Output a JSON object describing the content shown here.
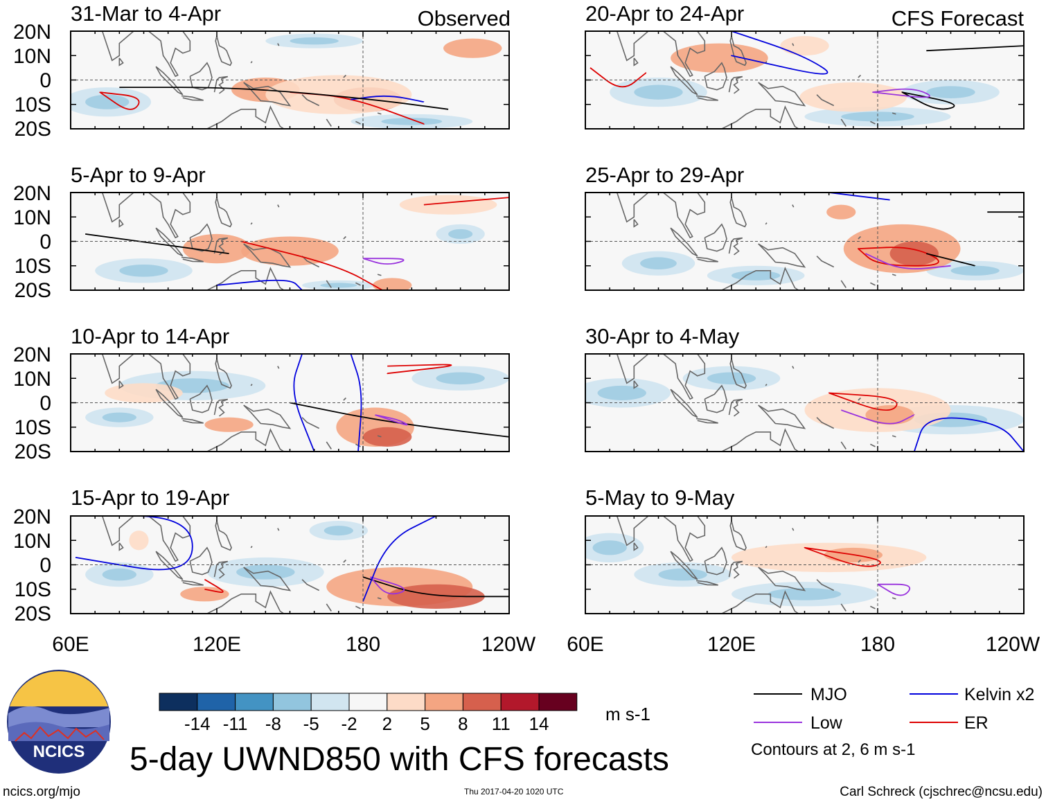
{
  "corner_labels": {
    "observed": "Observed",
    "forecast": "CFS Forecast"
  },
  "panels": [
    {
      "title": "31-Mar to 4-Apr",
      "source": "observed"
    },
    {
      "title": "5-Apr to 9-Apr",
      "source": "observed"
    },
    {
      "title": "10-Apr to 14-Apr",
      "source": "observed"
    },
    {
      "title": "15-Apr to 19-Apr",
      "source": "observed"
    },
    {
      "title": "20-Apr to 24-Apr",
      "source": "forecast"
    },
    {
      "title": "25-Apr to 29-Apr",
      "source": "forecast"
    },
    {
      "title": "30-Apr to 4-May",
      "source": "forecast"
    },
    {
      "title": "5-May to 9-May",
      "source": "forecast"
    }
  ],
  "lat_labels": [
    "20N",
    "10N",
    "0",
    "10S",
    "20S"
  ],
  "lon_labels": [
    "60E",
    "120E",
    "180",
    "120W"
  ],
  "colorbar": {
    "ticks": [
      "-14",
      "-11",
      "-8",
      "-5",
      "-2",
      "2",
      "5",
      "8",
      "11",
      "14"
    ],
    "colors": [
      "#0d2f5e",
      "#1f63a8",
      "#4393c3",
      "#92c5de",
      "#d1e5f0",
      "#f7f7f7",
      "#fddbc7",
      "#f4a582",
      "#d6604d",
      "#b2182b",
      "#67001f"
    ],
    "units": "m s-1"
  },
  "legend": {
    "items": [
      {
        "label": "MJO",
        "color": "#000000"
      },
      {
        "label": "Kelvin x2",
        "color": "#0000dd"
      },
      {
        "label": "Low",
        "color": "#9933dd"
      },
      {
        "label": "ER",
        "color": "#dd0000"
      }
    ],
    "contours_note": "Contours at 2, 6 m s-1"
  },
  "main_title": "5-day UWND850 with CFS forecasts",
  "logo_text": "NCICS",
  "footer": {
    "url": "ncics.org/mjo",
    "timestamp": "Thu 2017-04-20 1020 UTC",
    "author": "Carl Schreck (cjschrec@ncsu.edu)"
  },
  "colors": {
    "warm": "#f4a582",
    "warm_light": "#fddbc7",
    "warm_dark": "#d6604d",
    "cool_light": "#d1e5f0",
    "cool": "#92c5de"
  }
}
